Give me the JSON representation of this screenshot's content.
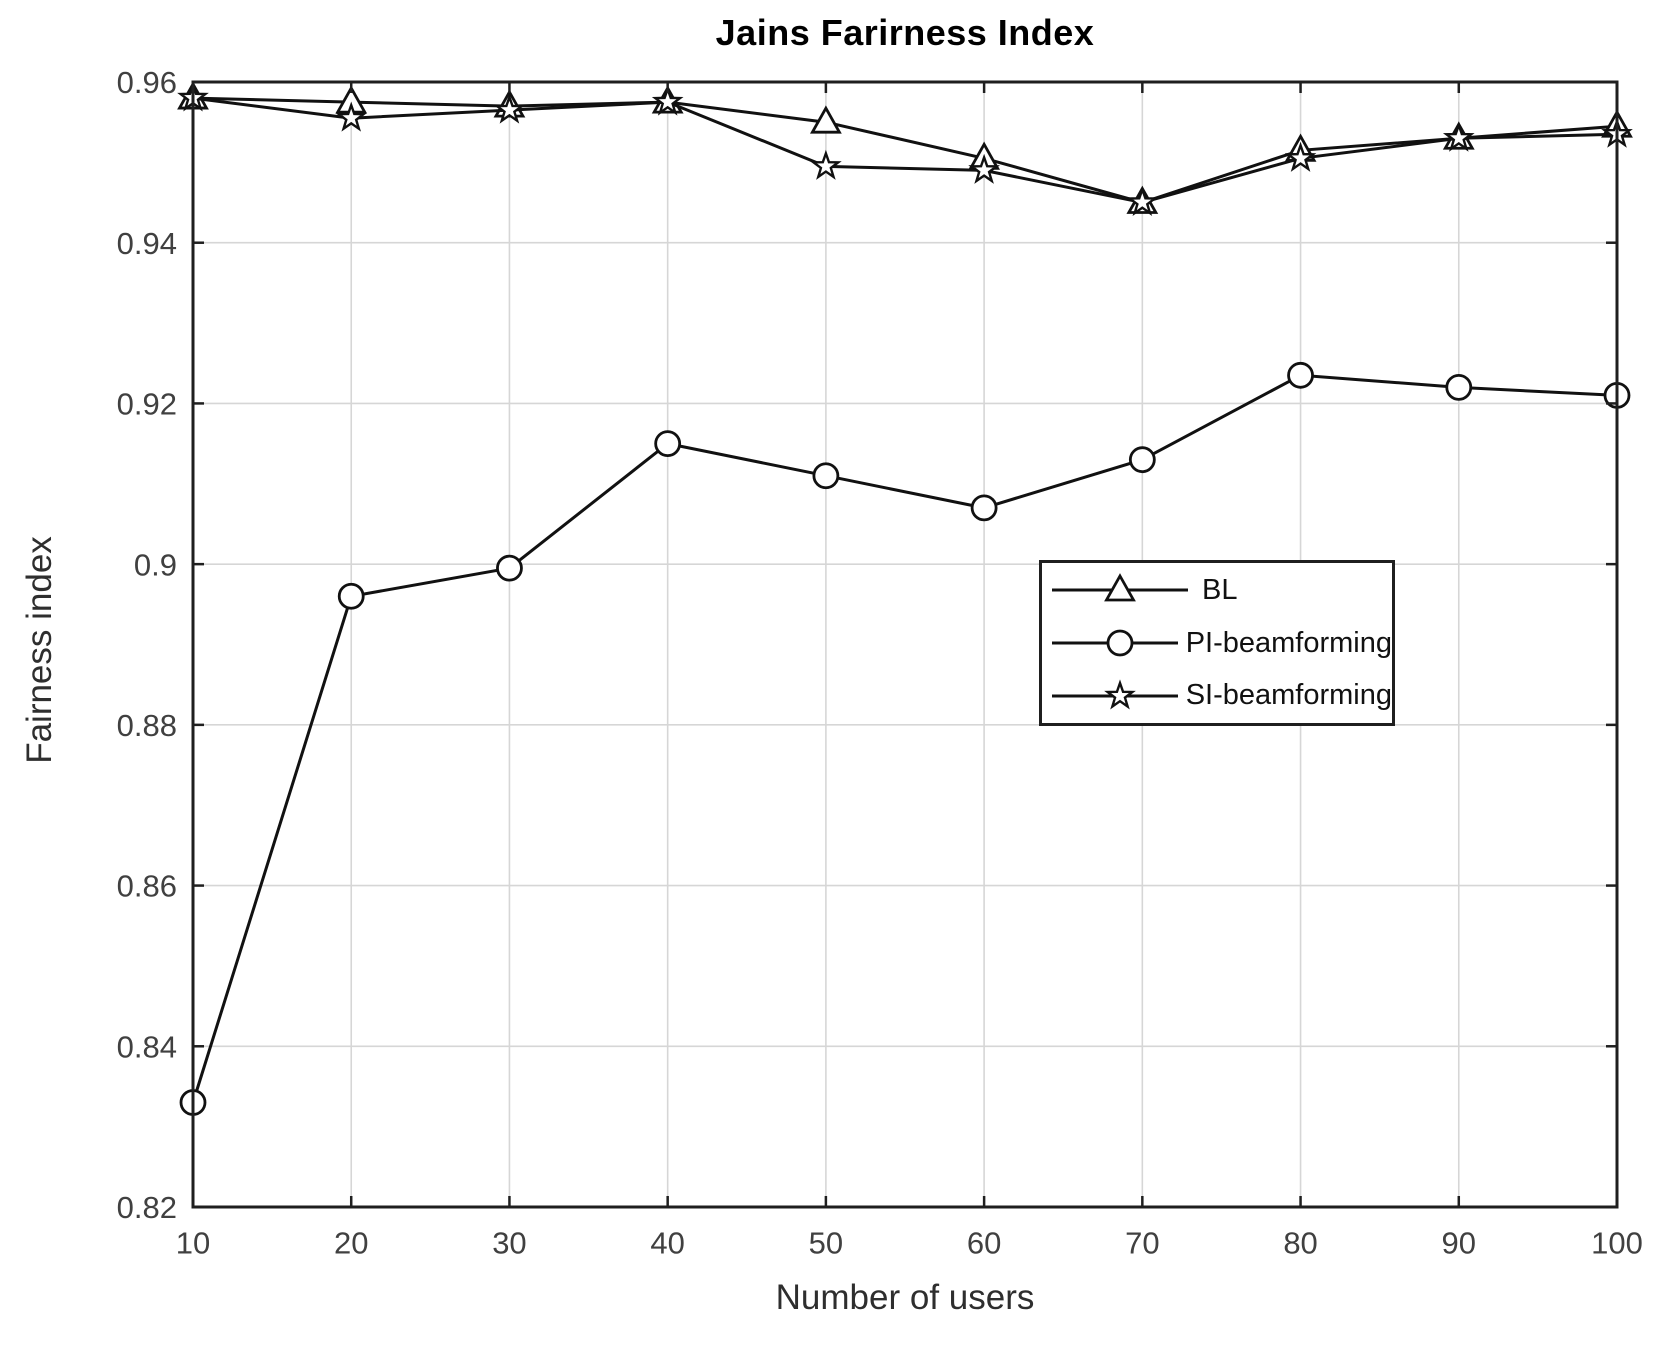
{
  "title": "Jains Farirness Index",
  "chart_data": {
    "type": "line",
    "title": "Jains Farirness Index",
    "xlabel": "Number of users",
    "ylabel": "Fairness index",
    "xlim": [
      10,
      100
    ],
    "ylim": [
      0.82,
      0.96
    ],
    "xticks": [
      10,
      20,
      30,
      40,
      50,
      60,
      70,
      80,
      90,
      100
    ],
    "xtick_labels": [
      "10",
      "20",
      "30",
      "40",
      "50",
      "60",
      "70",
      "80",
      "90",
      "100"
    ],
    "yticks": [
      0.82,
      0.84,
      0.86,
      0.88,
      0.9,
      0.92,
      0.94,
      0.96
    ],
    "ytick_labels": [
      "0.82",
      "0.84",
      "0.86",
      "0.88",
      "0.9",
      "0.92",
      "0.94",
      "0.96"
    ],
    "grid": true,
    "legend_position": "middle-right",
    "x": [
      10,
      20,
      30,
      40,
      50,
      60,
      70,
      80,
      90,
      100
    ],
    "series": [
      {
        "name": "BL",
        "marker": "triangle",
        "values": [
          0.958,
          0.9575,
          0.957,
          0.9575,
          0.955,
          0.9505,
          0.945,
          0.9515,
          0.953,
          0.9545
        ]
      },
      {
        "name": "PI-beamforming",
        "marker": "circle",
        "values": [
          0.833,
          0.896,
          0.8995,
          0.915,
          0.911,
          0.907,
          0.913,
          0.9235,
          0.922,
          0.921
        ]
      },
      {
        "name": "SI-beamforming",
        "marker": "pentagram",
        "values": [
          0.958,
          0.9555,
          0.9565,
          0.9575,
          0.9495,
          0.949,
          0.945,
          0.9505,
          0.953,
          0.9535
        ]
      }
    ],
    "colors": {
      "line": "#111111",
      "grid": "#d6d6d6",
      "axis_box": "#1f1f1f",
      "tick_label": "#404040",
      "marker_fill": "#ffffff"
    }
  }
}
